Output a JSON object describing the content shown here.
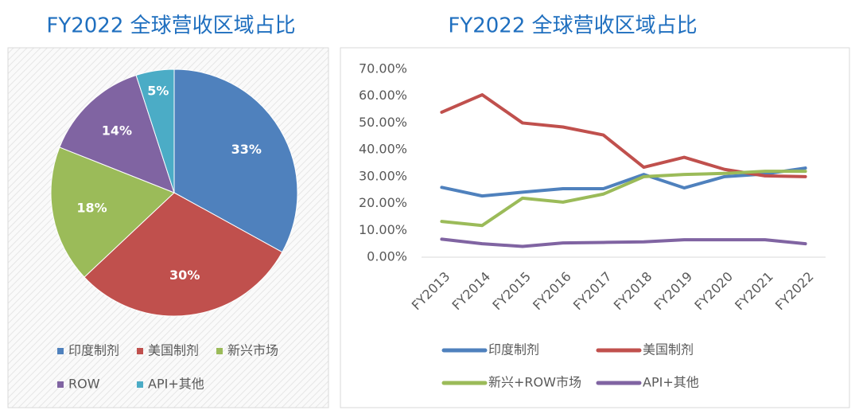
{
  "chart_data": [
    {
      "type": "pie",
      "title": "FY2022 全球营收区域占比",
      "categories": [
        "印度制剂",
        "美国制剂",
        "新兴市场",
        "ROW",
        "API+其他"
      ],
      "values": [
        33,
        30,
        18,
        14,
        5
      ],
      "value_labels": [
        "33%",
        "30%",
        "18%",
        "14%",
        "5%"
      ],
      "colors": [
        "#4f81bd",
        "#c0504d",
        "#9bbb59",
        "#8064a2",
        "#4bacc6"
      ],
      "legend": "bottom"
    },
    {
      "type": "line",
      "title": "FY2022 全球营收区域占比",
      "categories": [
        "FY2013",
        "FY2014",
        "FY2015",
        "FY2016",
        "FY2017",
        "FY2018",
        "FY2019",
        "FY2020",
        "FY2021",
        "FY2022"
      ],
      "series": [
        {
          "name": "印度制剂",
          "color": "#4f81bd",
          "values": [
            26,
            22.8,
            24.2,
            25.5,
            25.5,
            30.8,
            25.8,
            30,
            31,
            33.2
          ]
        },
        {
          "name": "美国制剂",
          "color": "#c0504d",
          "values": [
            54,
            60.5,
            50,
            48.5,
            45.5,
            33.5,
            37.2,
            32.7,
            30.3,
            30
          ]
        },
        {
          "name": "新兴+ROW市场",
          "color": "#9bbb59",
          "values": [
            13.3,
            11.8,
            22,
            20.5,
            23.5,
            30,
            30.8,
            31.2,
            32,
            32
          ]
        },
        {
          "name": "API+其他",
          "color": "#8064a2",
          "values": [
            6.7,
            5,
            4,
            5.3,
            5.5,
            5.7,
            6.5,
            6.5,
            6.5,
            5
          ]
        }
      ],
      "ylim": [
        0,
        70
      ],
      "yticks": [
        {
          "value": 0,
          "label": "0.00%"
        },
        {
          "value": 10,
          "label": "10.00%"
        },
        {
          "value": 20,
          "label": "20.00%"
        },
        {
          "value": 30,
          "label": "30.00%"
        },
        {
          "value": 40,
          "label": "40.00%"
        },
        {
          "value": 50,
          "label": "50.00%"
        },
        {
          "value": 60,
          "label": "60.00%"
        },
        {
          "value": 70,
          "label": "70.00%"
        }
      ],
      "legend": "bottom"
    }
  ]
}
